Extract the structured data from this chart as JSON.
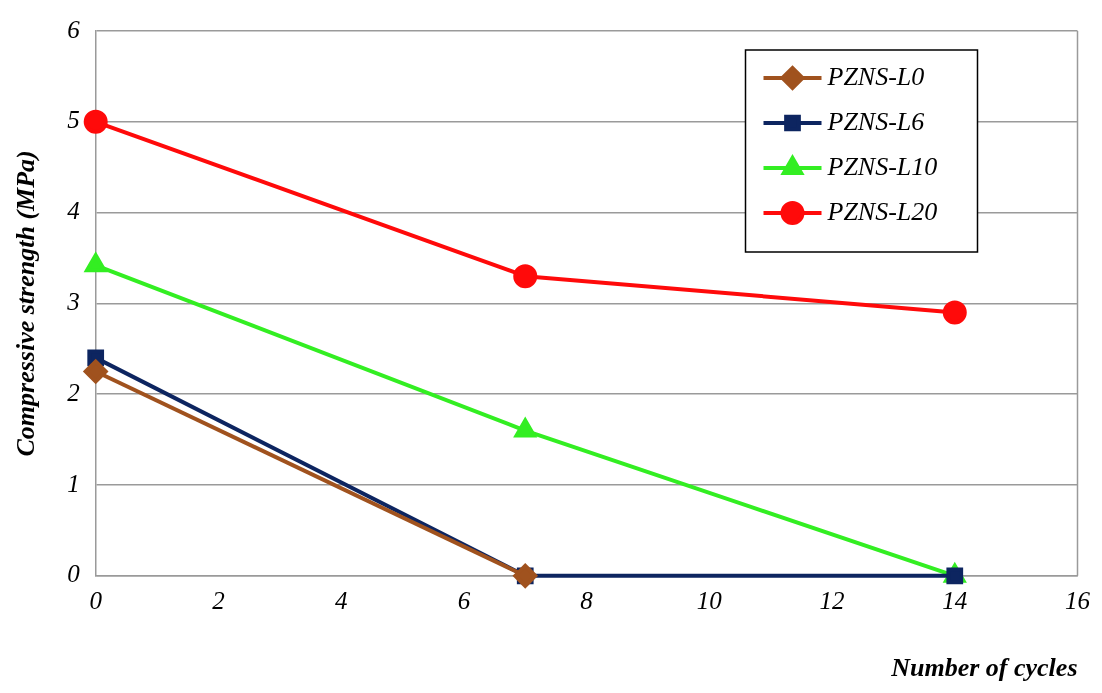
{
  "chart_data": {
    "type": "line",
    "xlabel": "Number of cycles",
    "ylabel": "Compressive strength (MPa)",
    "x": [
      0,
      7,
      14
    ],
    "series": [
      {
        "name": "PZNS-L0",
        "color": "#a0521e",
        "marker": "diamond",
        "values": [
          2.25,
          0,
          null
        ]
      },
      {
        "name": "PZNS-L6",
        "color": "#0d2560",
        "marker": "square",
        "values": [
          2.4,
          0,
          0
        ]
      },
      {
        "name": "PZNS-L10",
        "color": "#33ee22",
        "marker": "triangle",
        "values": [
          3.42,
          1.6,
          0
        ]
      },
      {
        "name": "PZNS-L20",
        "color": "#ff0a0a",
        "marker": "circle",
        "values": [
          5,
          3.3,
          2.9
        ]
      }
    ],
    "xlim": [
      0,
      16
    ],
    "xticks": [
      0,
      2,
      4,
      6,
      8,
      10,
      12,
      14,
      16
    ],
    "ylim": [
      0,
      6
    ],
    "yticks": [
      0,
      1,
      2,
      3,
      4,
      5,
      6
    ],
    "grid": "y",
    "legend": "top right",
    "line_style": "solid"
  }
}
